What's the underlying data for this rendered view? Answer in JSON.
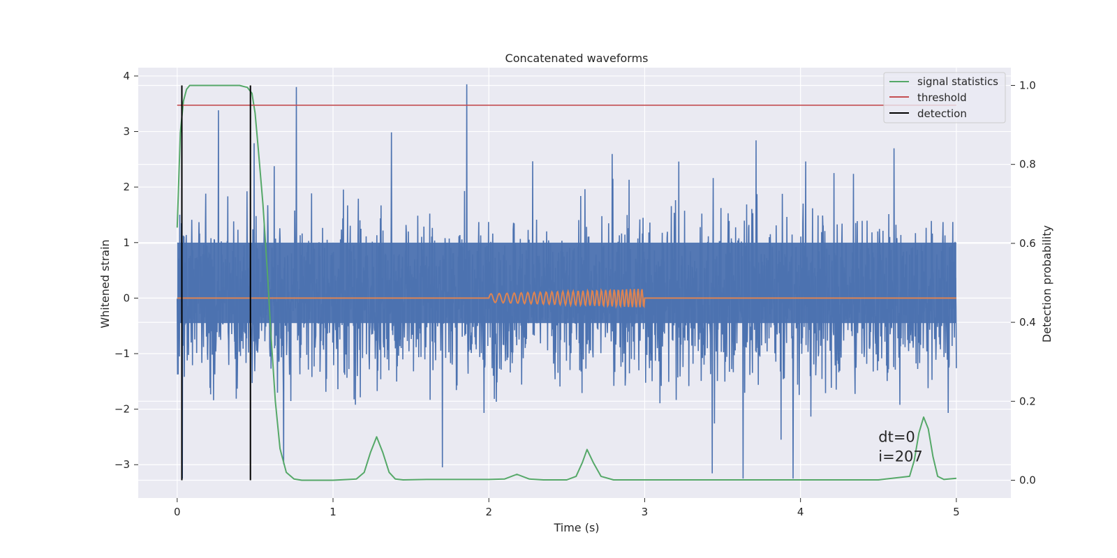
{
  "chart_data": {
    "type": "line",
    "title": "Concatenated waveforms",
    "xlabel": "Time (s)",
    "ylabel": "Whitened strain",
    "ylabel_right": "Detection probability",
    "xlim": [
      -0.25,
      5.35
    ],
    "ylim": [
      -3.6,
      4.15
    ],
    "ylim_right": [
      -0.045,
      1.045
    ],
    "xticks": [
      0,
      1,
      2,
      3,
      4,
      5
    ],
    "yticks": [
      -3,
      -2,
      -1,
      0,
      1,
      2,
      3,
      4
    ],
    "yticks_right": [
      0.0,
      0.2,
      0.4,
      0.6,
      0.8,
      1.0
    ],
    "ytick_labels": [
      "−3",
      "−2",
      "−1",
      "0",
      "1",
      "2",
      "3",
      "4"
    ],
    "xtick_labels": [
      "0",
      "1",
      "2",
      "3",
      "4",
      "5"
    ],
    "ytick_right_labels": [
      "0.0",
      "0.2",
      "0.4",
      "0.6",
      "0.8",
      "1.0"
    ],
    "grid": true,
    "legend_position": "top-right",
    "colors": {
      "background": "#eaeaf2",
      "grid": "#ffffff",
      "strain": "#4c72b0",
      "template": "#dd8452",
      "signal_statistics": "#55a868",
      "threshold": "#c44e52",
      "detection": "#000000"
    },
    "series": [
      {
        "name": "signal statistics",
        "axis": "right",
        "x": [
          0.0,
          0.02,
          0.04,
          0.06,
          0.08,
          0.1,
          0.2,
          0.3,
          0.4,
          0.45,
          0.48,
          0.5,
          0.52,
          0.55,
          0.58,
          0.6,
          0.63,
          0.66,
          0.7,
          0.75,
          0.8,
          1.0,
          1.15,
          1.2,
          1.24,
          1.28,
          1.32,
          1.36,
          1.4,
          1.45,
          1.6,
          2.0,
          2.1,
          2.18,
          2.26,
          2.35,
          2.5,
          2.56,
          2.6,
          2.63,
          2.67,
          2.72,
          2.8,
          3.0,
          3.5,
          4.0,
          4.5,
          4.7,
          4.73,
          4.76,
          4.79,
          4.82,
          4.85,
          4.88,
          4.92,
          5.0
        ],
        "y": [
          0.64,
          0.88,
          0.96,
          0.99,
          1.0,
          1.0,
          1.0,
          1.0,
          1.0,
          0.995,
          0.98,
          0.93,
          0.84,
          0.7,
          0.52,
          0.38,
          0.2,
          0.08,
          0.02,
          0.003,
          0.0,
          0.0,
          0.003,
          0.02,
          0.07,
          0.11,
          0.07,
          0.02,
          0.003,
          0.001,
          0.002,
          0.002,
          0.003,
          0.015,
          0.003,
          0.001,
          0.001,
          0.01,
          0.045,
          0.078,
          0.045,
          0.01,
          0.001,
          0.001,
          0.001,
          0.001,
          0.001,
          0.01,
          0.05,
          0.12,
          0.16,
          0.13,
          0.06,
          0.01,
          0.002,
          0.005
        ]
      },
      {
        "name": "threshold",
        "axis": "right",
        "x": [
          0.0,
          5.0
        ],
        "y": [
          0.95,
          0.95
        ]
      },
      {
        "name": "detection",
        "axis": "right",
        "x": [
          0.03,
          0.47
        ],
        "y_range": [
          0.0,
          1.0
        ]
      }
    ],
    "strain": {
      "color": "blue",
      "x_range": [
        0.0,
        5.0
      ],
      "core_band": [
        -0.45,
        1.0
      ],
      "peak_range": [
        -3.25,
        3.85
      ]
    },
    "template": {
      "x_range": [
        0.0,
        5.0
      ],
      "chirp_start": 2.0,
      "chirp_end": 3.0,
      "max_amplitude": 0.17
    },
    "annotation": {
      "line1": "dt=0",
      "line2": "i=207",
      "x": 4.5,
      "y": -2.5
    }
  }
}
